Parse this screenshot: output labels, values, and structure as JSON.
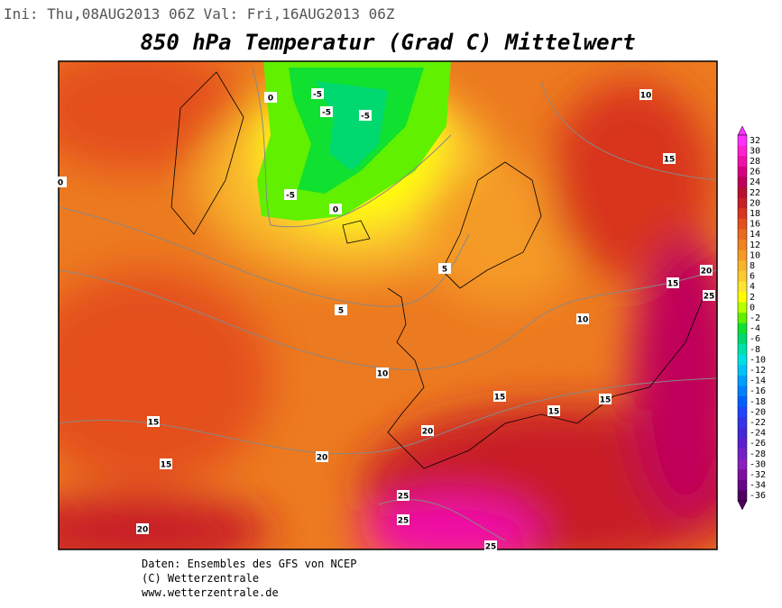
{
  "header": {
    "run": "Ini: Thu,08AUG2013 06Z Val: Fri,16AUG2013 06Z",
    "title": "850 hPa Temperatur (Grad C) Mittelwert"
  },
  "map": {
    "contour_labels": [
      "0",
      "-5",
      "-5",
      "-5",
      "-5",
      "0",
      "10",
      "15",
      "5",
      "5",
      "10",
      "15",
      "20",
      "25",
      "10",
      "15",
      "15",
      "15",
      "20",
      "15",
      "15",
      "20",
      "25",
      "25",
      "20",
      "25",
      "0"
    ]
  },
  "colorbar": {
    "labels": [
      "32",
      "30",
      "28",
      "26",
      "24",
      "22",
      "20",
      "18",
      "16",
      "14",
      "12",
      "10",
      "8",
      "6",
      "4",
      "2",
      "0",
      "-2",
      "-4",
      "-6",
      "-8",
      "-10",
      "-12",
      "-14",
      "-16",
      "-18",
      "-20",
      "-22",
      "-24",
      "-26",
      "-28",
      "-30",
      "-32",
      "-34",
      "-36"
    ],
    "colors": [
      "#ff30ff",
      "#ff20d0",
      "#f010a8",
      "#d80080",
      "#c0005a",
      "#b8102e",
      "#c81e28",
      "#d8361e",
      "#e4501c",
      "#ea6a1e",
      "#f08222",
      "#f49a26",
      "#f8b42a",
      "#fcca30",
      "#ffe632",
      "#ffff00",
      "#b8ff00",
      "#60f000",
      "#10e030",
      "#00d870",
      "#00e0a8",
      "#00e0e0",
      "#00c4f8",
      "#00a0ff",
      "#0080ff",
      "#0060ff",
      "#2044ff",
      "#3434e8",
      "#4428d8",
      "#5c20d0",
      "#7420c8",
      "#8820c0",
      "#8010a0",
      "#680888",
      "#500060"
    ]
  },
  "footer": {
    "line1": "Daten: Ensembles des GFS von NCEP",
    "line2": "(C) Wetterzentrale",
    "line3": "www.wetterzentrale.de"
  }
}
